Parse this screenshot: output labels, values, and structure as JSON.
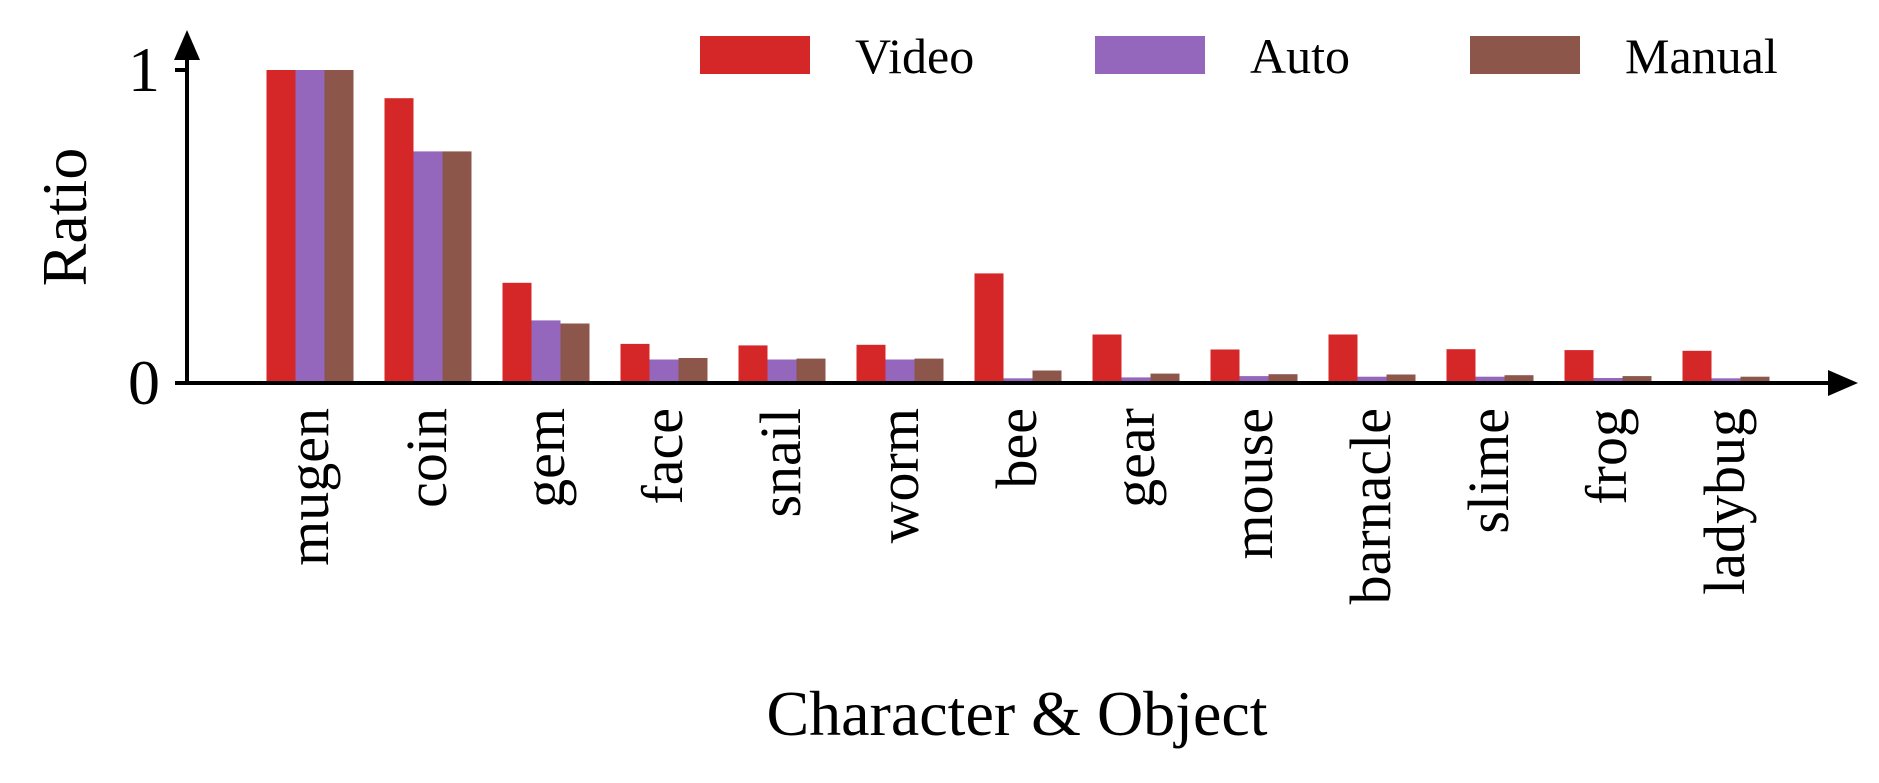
{
  "chart_data": {
    "type": "bar",
    "title": "",
    "xlabel": "Character & Object",
    "ylabel": "Ratio",
    "ylim": [
      0,
      1
    ],
    "yticks": [
      0,
      1
    ],
    "ytick_labels": [
      "0",
      "1"
    ],
    "grid": false,
    "legend_position": "top-right",
    "categories": [
      "mugen",
      "coin",
      "gem",
      "face",
      "snail",
      "worm",
      "bee",
      "gear",
      "mouse",
      "barnacle",
      "slime",
      "frog",
      "ladybug"
    ],
    "series": [
      {
        "name": "Video",
        "color": "#d62728",
        "values": [
          1.0,
          0.91,
          0.32,
          0.125,
          0.12,
          0.122,
          0.35,
          0.155,
          0.107,
          0.155,
          0.108,
          0.105,
          0.103
        ]
      },
      {
        "name": "Auto",
        "color": "#9467bd",
        "values": [
          1.0,
          0.74,
          0.2,
          0.075,
          0.075,
          0.075,
          0.015,
          0.018,
          0.022,
          0.02,
          0.02,
          0.016,
          0.015
        ]
      },
      {
        "name": "Manual",
        "color": "#8c564b",
        "values": [
          1.0,
          0.74,
          0.19,
          0.08,
          0.078,
          0.078,
          0.04,
          0.03,
          0.028,
          0.027,
          0.025,
          0.022,
          0.02
        ]
      }
    ]
  }
}
